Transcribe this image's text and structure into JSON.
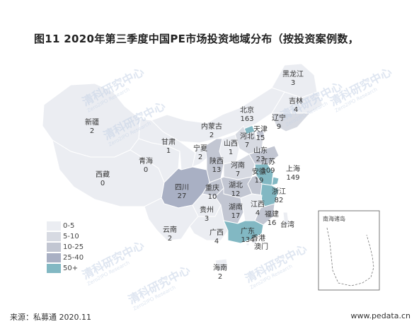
{
  "title": "图11 2020年第三季度中国PE市场投资地域分布（按投资案例数，",
  "source": "来源：私募通 2020.11",
  "website": "www.pedata.cn",
  "inset_title": "南海诸岛",
  "legend": [
    {
      "label": "0-5",
      "color": "#ebedf2"
    },
    {
      "label": "5-10",
      "color": "#d7dae2"
    },
    {
      "label": "10-25",
      "color": "#c2c6d2"
    },
    {
      "label": "25-40",
      "color": "#a9b0c4"
    },
    {
      "label": "50+",
      "color": "#82b8c3"
    }
  ],
  "watermark": {
    "main": "清科研究中心",
    "sub": "Zero2IPO Research",
    "logo": "Zero IPO"
  },
  "provinces": [
    {
      "name": "黑龙江",
      "value": "3",
      "fill": "#ebedf2"
    },
    {
      "name": "吉林",
      "value": "4",
      "fill": "#ebedf2"
    },
    {
      "name": "辽宁",
      "value": "9",
      "fill": "#d7dae2"
    },
    {
      "name": "北京",
      "value": "163",
      "fill": "#82b8c3"
    },
    {
      "name": "天津",
      "value": "15",
      "fill": "#c2c6d2"
    },
    {
      "name": "内蒙古",
      "value": "2",
      "fill": "#ebedf2"
    },
    {
      "name": "新疆",
      "value": "2",
      "fill": "#ebedf2"
    },
    {
      "name": "河北",
      "value": "7",
      "fill": "#d7dae2"
    },
    {
      "name": "山西",
      "value": "1",
      "fill": "#ebedf2"
    },
    {
      "name": "甘肃",
      "value": "1",
      "fill": "#ebedf2"
    },
    {
      "name": "宁夏",
      "value": "2",
      "fill": "#ebedf2"
    },
    {
      "name": "青海",
      "value": "0",
      "fill": "#ebedf2"
    },
    {
      "name": "陕西",
      "value": "13",
      "fill": "#c2c6d2"
    },
    {
      "name": "山东",
      "value": "23",
      "fill": "#c2c6d2"
    },
    {
      "name": "河南",
      "value": "7",
      "fill": "#d7dae2"
    },
    {
      "name": "江苏",
      "value": "109",
      "fill": "#82b8c3"
    },
    {
      "name": "上海",
      "value": "149",
      "fill": "#82b8c3"
    },
    {
      "name": "西藏",
      "value": "0",
      "fill": "#ebedf2"
    },
    {
      "name": "安徽",
      "value": "19",
      "fill": "#c2c6d2"
    },
    {
      "name": "四川",
      "value": "27",
      "fill": "#a9b0c4"
    },
    {
      "name": "重庆",
      "value": "10",
      "fill": "#c2c6d2"
    },
    {
      "name": "湖北",
      "value": "12",
      "fill": "#c2c6d2"
    },
    {
      "name": "浙江",
      "value": "82",
      "fill": "#82b8c3"
    },
    {
      "name": "贵州",
      "value": "3",
      "fill": "#ebedf2"
    },
    {
      "name": "湖南",
      "value": "17",
      "fill": "#c2c6d2"
    },
    {
      "name": "江西",
      "value": "4",
      "fill": "#ebedf2"
    },
    {
      "name": "福建",
      "value": "16",
      "fill": "#c2c6d2"
    },
    {
      "name": "云南",
      "value": "2",
      "fill": "#ebedf2"
    },
    {
      "name": "广西",
      "value": "4",
      "fill": "#ebedf2"
    },
    {
      "name": "广东",
      "value": "134",
      "fill": "#82b8c3"
    },
    {
      "name": "台湾",
      "value": "",
      "fill": "#ebedf2"
    },
    {
      "name": "香港",
      "value": "",
      "fill": "#ebedf2"
    },
    {
      "name": "澳门",
      "value": "",
      "fill": "#ebedf2"
    },
    {
      "name": "海南",
      "value": "2",
      "fill": "#ebedf2"
    }
  ]
}
